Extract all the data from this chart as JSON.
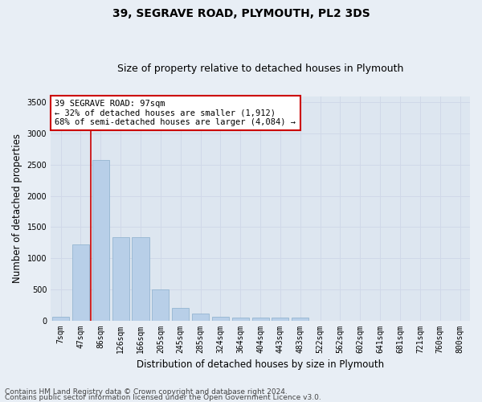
{
  "title": "39, SEGRAVE ROAD, PLYMOUTH, PL2 3DS",
  "subtitle": "Size of property relative to detached houses in Plymouth",
  "xlabel": "Distribution of detached houses by size in Plymouth",
  "ylabel": "Number of detached properties",
  "bar_color": "#b8cfe8",
  "bar_edge_color": "#8aaecc",
  "grid_color": "#d0d8e8",
  "background_color": "#dde6f0",
  "fig_background": "#e8eef5",
  "categories": [
    "7sqm",
    "47sqm",
    "86sqm",
    "126sqm",
    "166sqm",
    "205sqm",
    "245sqm",
    "285sqm",
    "324sqm",
    "364sqm",
    "404sqm",
    "443sqm",
    "483sqm",
    "522sqm",
    "562sqm",
    "602sqm",
    "641sqm",
    "681sqm",
    "721sqm",
    "760sqm",
    "800sqm"
  ],
  "values": [
    55,
    1220,
    2580,
    1340,
    1340,
    495,
    195,
    110,
    55,
    50,
    50,
    50,
    40,
    0,
    0,
    0,
    0,
    0,
    0,
    0,
    0
  ],
  "ylim": [
    0,
    3600
  ],
  "yticks": [
    0,
    500,
    1000,
    1500,
    2000,
    2500,
    3000,
    3500
  ],
  "vline_x": 1.5,
  "vline_color": "#cc0000",
  "annotation_text": "39 SEGRAVE ROAD: 97sqm\n← 32% of detached houses are smaller (1,912)\n68% of semi-detached houses are larger (4,084) →",
  "annotation_box_color": "#ffffff",
  "annotation_box_edge": "#cc0000",
  "footer_line1": "Contains HM Land Registry data © Crown copyright and database right 2024.",
  "footer_line2": "Contains public sector information licensed under the Open Government Licence v3.0.",
  "title_fontsize": 10,
  "subtitle_fontsize": 9,
  "axis_label_fontsize": 8.5,
  "tick_fontsize": 7,
  "annotation_fontsize": 7.5,
  "footer_fontsize": 6.5
}
